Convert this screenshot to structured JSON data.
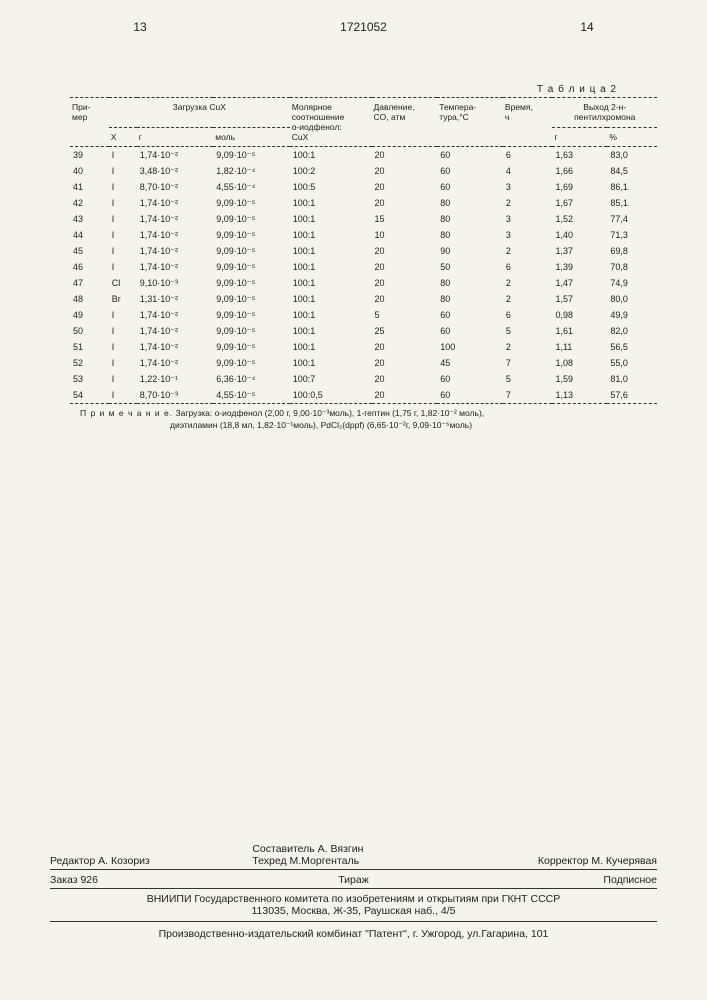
{
  "header": {
    "left_page": "13",
    "doc_number": "1721052",
    "right_page": "14"
  },
  "table": {
    "label": "Т а б л и ц а  2",
    "columns": {
      "primer": "При-\nмер",
      "cux_group": "Загрузка CuX",
      "x": "X",
      "g": "г",
      "mol": "моль",
      "ratio": "Молярное\nсоотношение\nо-иодфенол:\nCuX",
      "pressure": "Давление,\nCO, атм",
      "temp": "Темпера-\nтура,°С",
      "time": "Время,\nч",
      "yield_group": "Выход 2-н-пентилхромона",
      "yield_g": "г",
      "yield_pct": "%"
    },
    "rows": [
      [
        "39",
        "I",
        "1,74·10⁻²",
        "9,09·10⁻⁵",
        "100:1",
        "20",
        "60",
        "6",
        "1,63",
        "83,0"
      ],
      [
        "40",
        "I",
        "3,48·10⁻²",
        "1,82·10⁻⁴",
        "100:2",
        "20",
        "60",
        "4",
        "1,66",
        "84,5"
      ],
      [
        "41",
        "I",
        "8,70·10⁻²",
        "4,55·10⁻⁴",
        "100:5",
        "20",
        "60",
        "3",
        "1,69",
        "86,1"
      ],
      [
        "42",
        "I",
        "1,74·10⁻²",
        "9,09·10⁻⁵",
        "100:1",
        "20",
        "80",
        "2",
        "1,67",
        "85,1"
      ],
      [
        "43",
        "I",
        "1,74·10⁻²",
        "9,09·10⁻⁵",
        "100:1",
        "15",
        "80",
        "3",
        "1,52",
        "77,4"
      ],
      [
        "44",
        "I",
        "1,74·10⁻²",
        "9,09·10⁻⁵",
        "100:1",
        "10",
        "80",
        "3",
        "1,40",
        "71,3"
      ],
      [
        "45",
        "I",
        "1,74·10⁻²",
        "9,09·10⁻⁵",
        "100:1",
        "20",
        "90",
        "2",
        "1,37",
        "69,8"
      ],
      [
        "46",
        "I",
        "1,74·10⁻²",
        "9,09·10⁻⁵",
        "100:1",
        "20",
        "50",
        "6",
        "1,39",
        "70,8"
      ],
      [
        "47",
        "Cl",
        "9,10·10⁻³",
        "9,09·10⁻⁵",
        "100:1",
        "20",
        "80",
        "2",
        "1,47",
        "74,9"
      ],
      [
        "48",
        "Br",
        "1,31·10⁻²",
        "9,09·10⁻⁵",
        "100:1",
        "20",
        "80",
        "2",
        "1,57",
        "80,0"
      ],
      [
        "49",
        "I",
        "1,74·10⁻²",
        "9,09·10⁻⁵",
        "100:1",
        "5",
        "60",
        "6",
        "0,98",
        "49,9"
      ],
      [
        "50",
        "I",
        "1,74·10⁻²",
        "9,09·10⁻⁵",
        "100:1",
        "25",
        "60",
        "5",
        "1,61",
        "82,0"
      ],
      [
        "51",
        "I",
        "1,74·10⁻²",
        "9,09·10⁻⁵",
        "100:1",
        "20",
        "100",
        "2",
        "1,11",
        "56,5"
      ],
      [
        "52",
        "I",
        "1,74·10⁻²",
        "9,09·10⁻⁵",
        "100:1",
        "20",
        "45",
        "7",
        "1,08",
        "55,0"
      ],
      [
        "53",
        "I",
        "1,22·10⁻¹",
        "6,36·10⁻⁴",
        "100:7",
        "20",
        "60",
        "5",
        "1,59",
        "81,0"
      ],
      [
        "54",
        "I",
        "8,70·10⁻³",
        "4,55·10⁻⁵",
        "100:0,5",
        "20",
        "60",
        "7",
        "1,13",
        "57,6"
      ]
    ],
    "note_label": "П р и м е ч а н и е.",
    "note_line1": "Загрузка: о-иодфенол (2,00 г, 9,00·10⁻³моль), 1-гептин (1,75 г, 1,82·10⁻² моль),",
    "note_line2": "диэтиламин (18,8 мл, 1,82·10⁻¹моль), PdCl₂(dppf) (6,65·10⁻²г, 9,09·10⁻⁵моль)"
  },
  "footer": {
    "editor": "Редактор А. Козориз",
    "compiler": "Составитель А. Вязгин",
    "techred": "Техред М.Моргенталь",
    "corrector": "Корректор М. Кучерявая",
    "order": "Заказ 926",
    "tirazh": "Тираж",
    "podpisnoe": "Подписное",
    "org": "ВНИИПИ Государственного комитета по изобретениям и открытиям при ГКНТ СССР",
    "addr": "113035, Москва, Ж-35, Раушская наб., 4/5",
    "printer": "Производственно-издательский комбинат \"Патент\", г. Ужгород, ул.Гагарина, 101"
  }
}
